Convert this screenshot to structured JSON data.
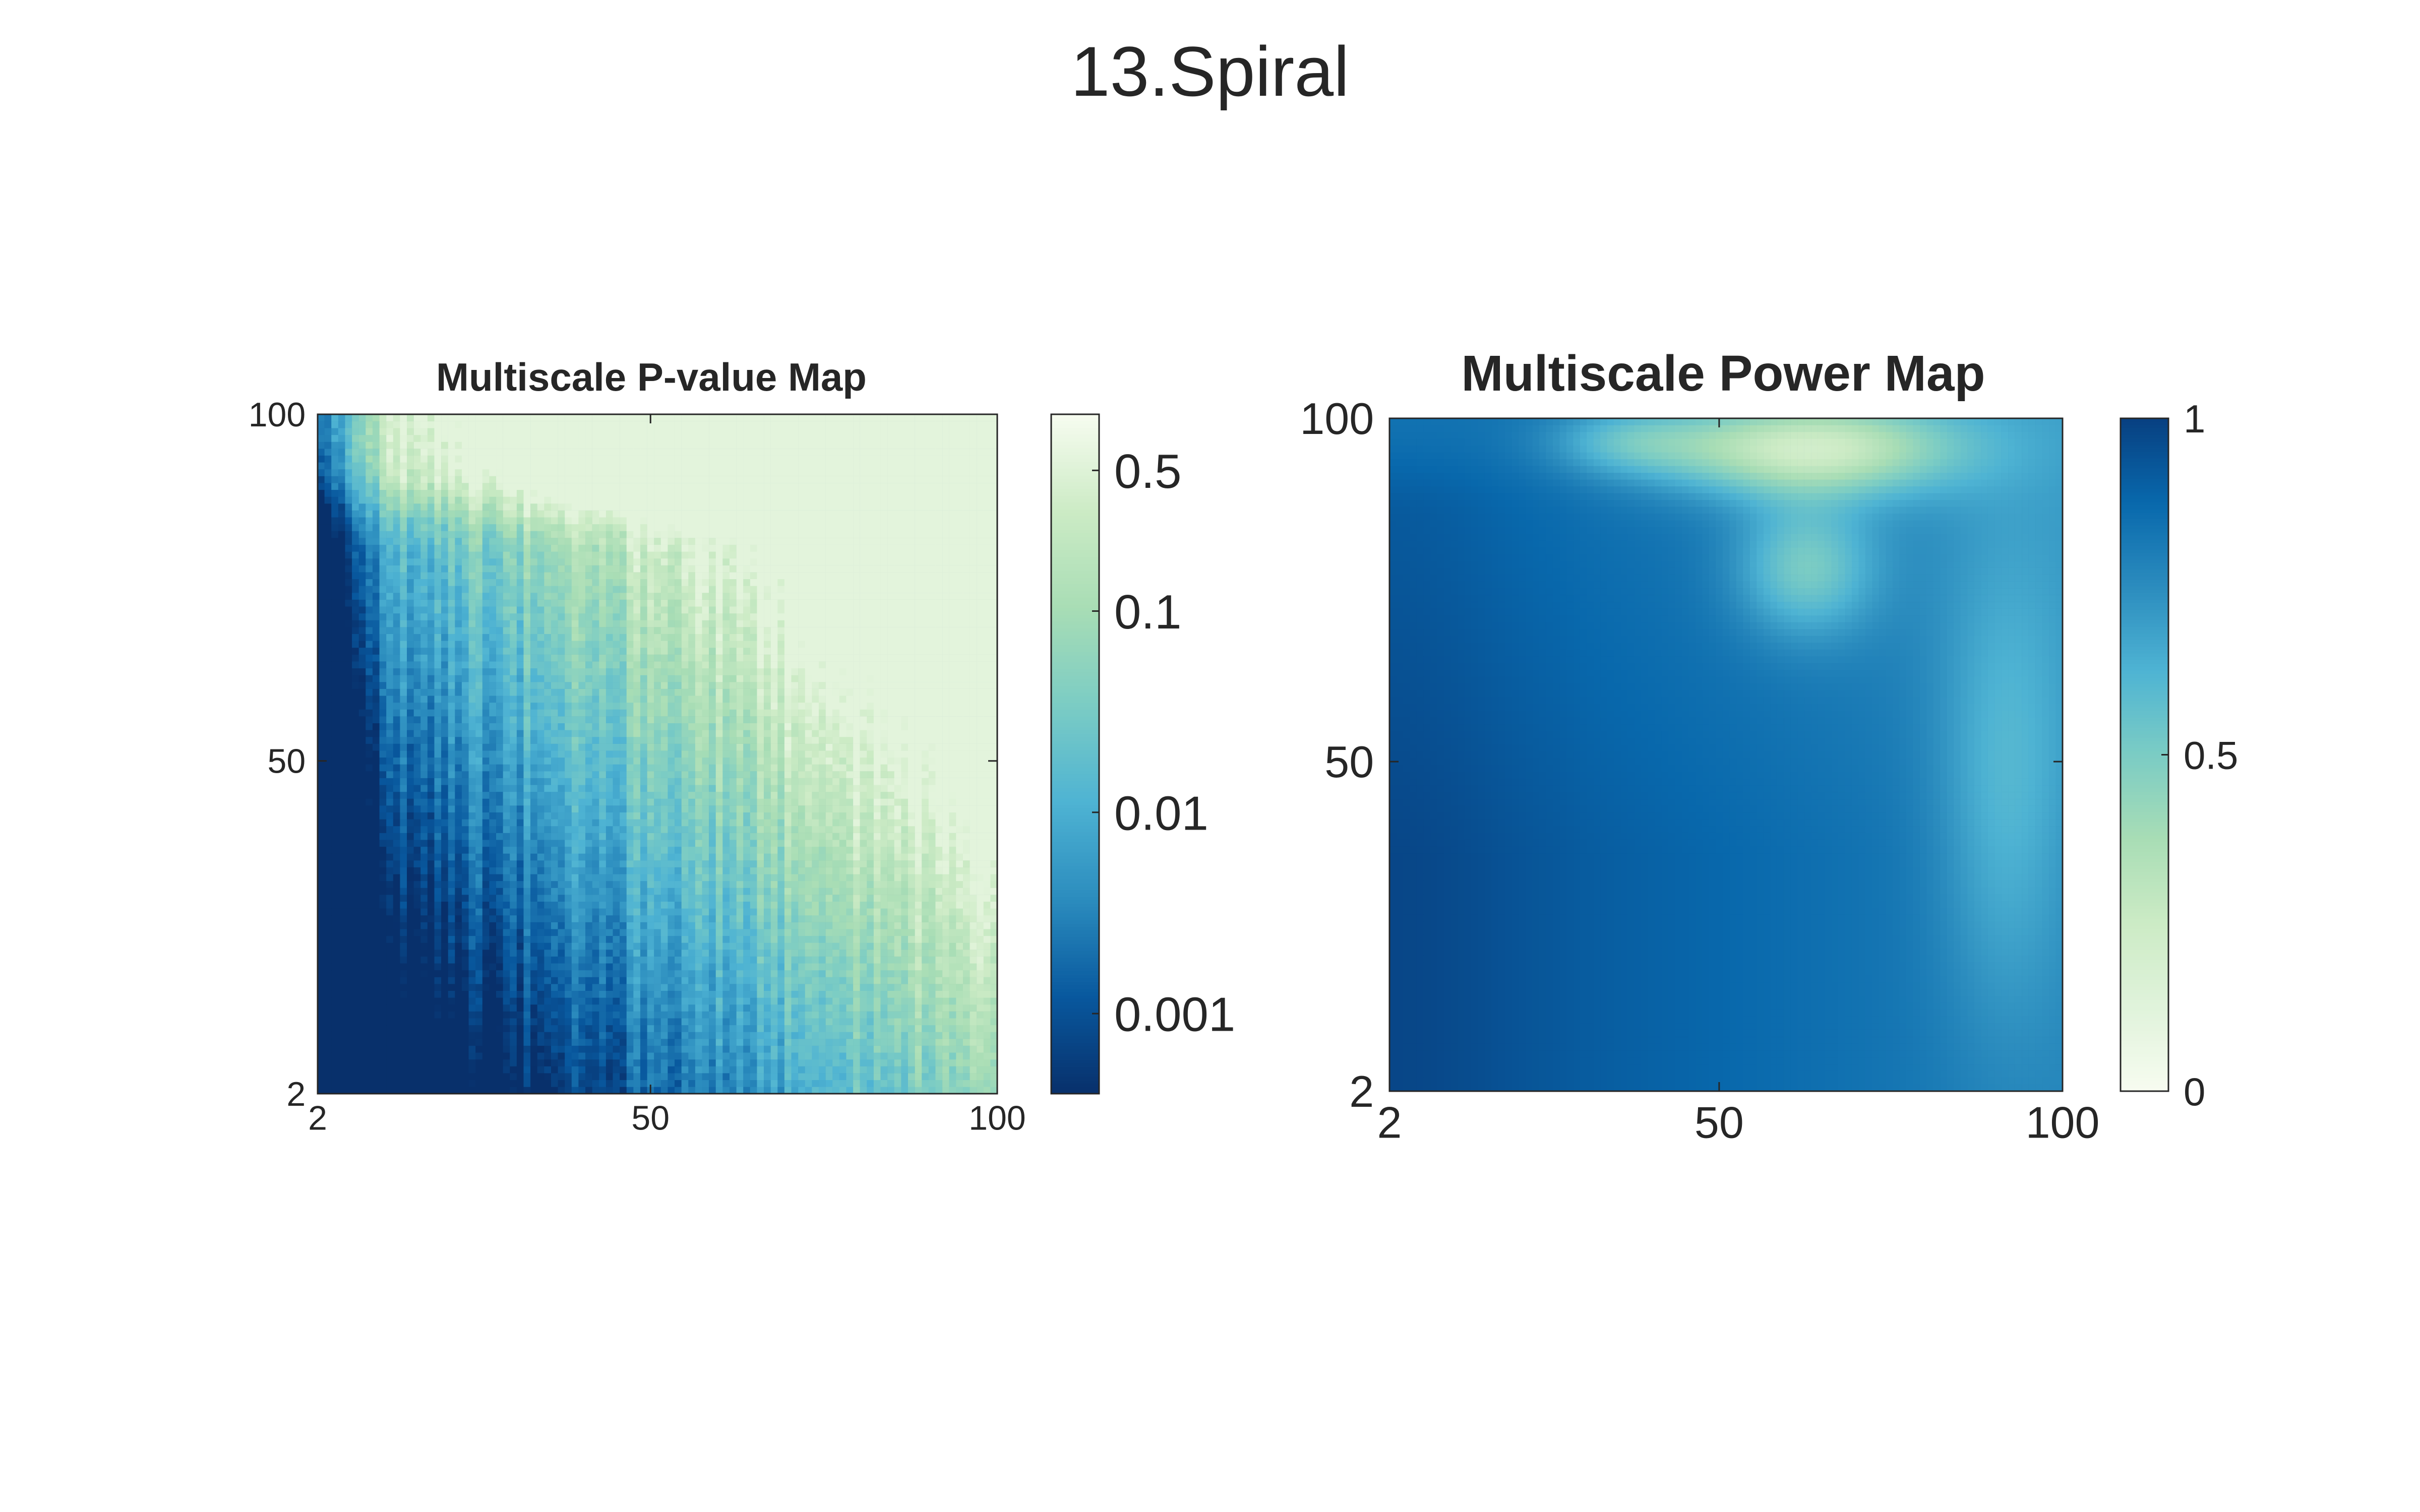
{
  "figure": {
    "title": "13.Spiral"
  },
  "chart_data": [
    {
      "type": "heatmap",
      "title": "Multiscale P-value Map",
      "xlabel": "",
      "ylabel": "",
      "xlim": [
        2,
        100
      ],
      "ylim": [
        2,
        100
      ],
      "x_ticks": [
        2,
        50,
        100
      ],
      "y_ticks": [
        2,
        50,
        100
      ],
      "grid_size": 99,
      "color_scale": "log",
      "colorbar": {
        "ticks": [
          "0.5",
          "0.1",
          "0.01",
          "0.001"
        ],
        "tick_values": [
          0.5,
          0.1,
          0.01,
          0.001
        ],
        "range": [
          0.0004,
          0.95
        ]
      },
      "colormap": [
        "#08306b",
        "#08589e",
        "#2b8cbe",
        "#4eb3d3",
        "#7bccc4",
        "#a8ddb5",
        "#ccebc5",
        "#f7fcf0"
      ],
      "description_values": "approximate p-values: <=0.001 in lower-left region, rising to ~0.5 near top-right"
    },
    {
      "type": "heatmap",
      "title": "Multiscale Power Map",
      "xlabel": "",
      "ylabel": "",
      "xlim": [
        2,
        100
      ],
      "ylim": [
        2,
        100
      ],
      "x_ticks": [
        2,
        50,
        100
      ],
      "y_ticks": [
        2,
        50,
        100
      ],
      "grid_size": 99,
      "color_scale": "linear",
      "colorbar": {
        "ticks": [
          "1",
          "0.5",
          "0"
        ],
        "tick_values": [
          1,
          0.5,
          0
        ],
        "range": [
          0,
          1
        ]
      },
      "colormap": [
        "#f7fcf0",
        "#e0f3db",
        "#ccebc5",
        "#a8ddb5",
        "#7bccc4",
        "#4eb3d3",
        "#2b8cbe",
        "#0868ac",
        "#084081"
      ]
    }
  ]
}
